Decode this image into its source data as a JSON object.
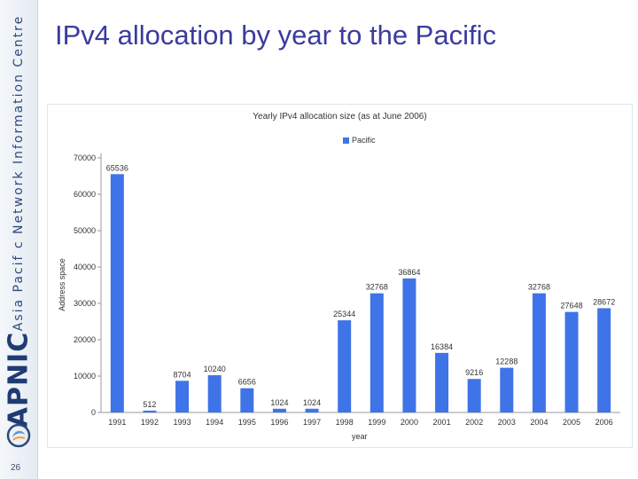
{
  "slide": {
    "title": "IPv4 allocation by year to the Pacific",
    "sidebar_text": "Asia Pacif c Network Information Centre",
    "logo_text": "APNIC",
    "page_number": "26"
  },
  "colors": {
    "bar": "#3f74e8",
    "title": "#3b3b9e",
    "brand": "#1f3b73"
  },
  "chart_data": {
    "type": "bar",
    "title": "Yearly IPv4 allocation size (as at June 2006)",
    "xlabel": "year",
    "ylabel": "Address space",
    "ylim": [
      0,
      70000
    ],
    "yticks": [
      0,
      10000,
      20000,
      30000,
      40000,
      50000,
      60000,
      70000
    ],
    "grid": false,
    "legend": "top-center",
    "categories": [
      "1991",
      "1992",
      "1993",
      "1994",
      "1995",
      "1996",
      "1997",
      "1998",
      "1999",
      "2000",
      "2001",
      "2002",
      "2003",
      "2004",
      "2005",
      "2006"
    ],
    "series": [
      {
        "name": "Pacific",
        "values": [
          65536,
          512,
          8704,
          10240,
          6656,
          1024,
          1024,
          25344,
          32768,
          36864,
          16384,
          9216,
          12288,
          32768,
          27648,
          28672
        ]
      }
    ]
  }
}
